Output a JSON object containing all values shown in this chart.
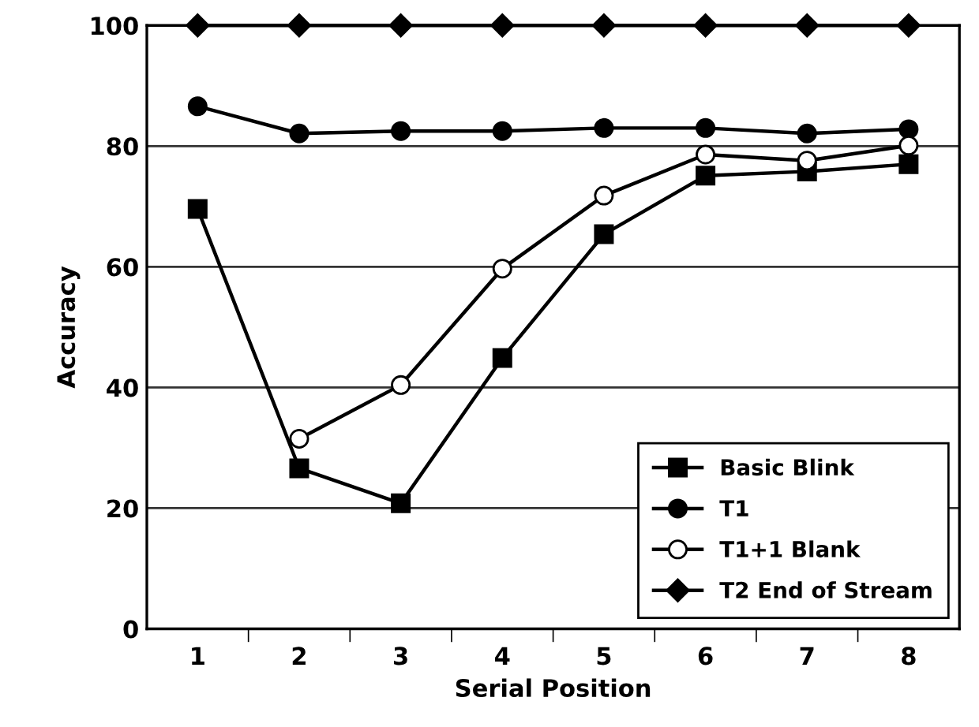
{
  "chart_data": {
    "type": "line",
    "xlabel": "Serial Position",
    "ylabel": "Accuracy",
    "categories": [
      "1",
      "2",
      "3",
      "4",
      "5",
      "6",
      "7",
      "8"
    ],
    "series": [
      {
        "name": "Basic Blink",
        "color": "#000000",
        "marker": "square",
        "values": [
          69.6,
          26.6,
          20.8,
          44.9,
          65.4,
          75.1,
          75.8,
          77.0
        ]
      },
      {
        "name": "T1",
        "color": "#000000",
        "marker": "circle",
        "values": [
          86.6,
          82.1,
          82.5,
          82.5,
          83.0,
          83.0,
          82.1,
          82.8
        ]
      },
      {
        "name": "T1+1 Blank",
        "color": "#000000",
        "marker": "circle-open",
        "values": [
          null,
          31.5,
          40.4,
          59.7,
          71.8,
          78.6,
          77.6,
          80.1
        ]
      },
      {
        "name": "T2 End of Stream",
        "color": "#000000",
        "marker": "diamond",
        "values": [
          100,
          100,
          100,
          100,
          100,
          100,
          100,
          100
        ]
      }
    ],
    "ylim": [
      0,
      100
    ],
    "yticks": [
      0,
      20,
      40,
      60,
      80,
      100
    ],
    "grid": "y",
    "legend": "bottom right",
    "line_style": "solid"
  }
}
